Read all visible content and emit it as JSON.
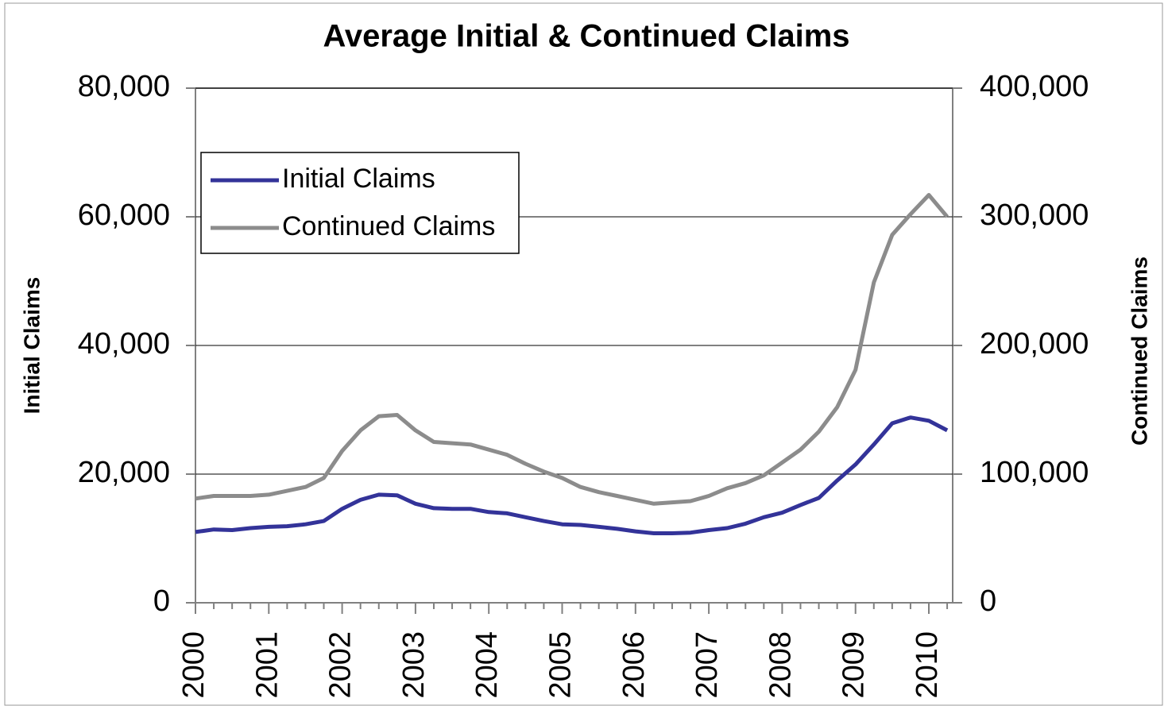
{
  "chart_data": {
    "type": "line",
    "title": "Average Initial & Continued Claims",
    "y_label": "Initial Claims",
    "y2_label": "Continued Claims",
    "categories": [
      "2000",
      null,
      null,
      null,
      "2001",
      null,
      null,
      null,
      "2002",
      null,
      null,
      null,
      "2003",
      null,
      null,
      null,
      "2004",
      null,
      null,
      null,
      "2005",
      null,
      null,
      null,
      "2006",
      null,
      null,
      null,
      "2007",
      null,
      null,
      null,
      "2008",
      null,
      null,
      null,
      "2009",
      null,
      null,
      null,
      "2010",
      null
    ],
    "series": [
      {
        "name": "Initial Claims",
        "color": "#333399",
        "axis": "y",
        "values": [
          11000,
          11400,
          11300,
          11600,
          11800,
          11900,
          12200,
          12700,
          14600,
          16000,
          16800,
          16700,
          15400,
          14700,
          14600,
          14600,
          14100,
          13900,
          13300,
          12700,
          12200,
          12100,
          11800,
          11500,
          11100,
          10800,
          10800,
          10900,
          11300,
          11600,
          12300,
          13300,
          14000,
          15200,
          16300,
          19000,
          21500,
          24600,
          27900,
          28800,
          28300,
          26800
        ]
      },
      {
        "name": "Continued Claims",
        "color": "#8c8c8c",
        "axis": "y2",
        "values": [
          81000,
          83000,
          83000,
          83000,
          84000,
          87000,
          90000,
          97000,
          118000,
          134000,
          145000,
          146000,
          134000,
          125000,
          124000,
          123000,
          119000,
          115000,
          108000,
          102000,
          97000,
          90000,
          86000,
          83000,
          80000,
          77000,
          78000,
          79000,
          83000,
          89000,
          93000,
          99000,
          109000,
          119000,
          133000,
          152000,
          181000,
          249000,
          286000,
          302000,
          317000,
          300000
        ]
      }
    ],
    "ylim": [
      0,
      80000
    ],
    "yticks": [
      0,
      {
        "value": 20000,
        "label": "20,000"
      },
      {
        "value": 40000,
        "label": "40,000"
      },
      {
        "value": 60000,
        "label": "60,000"
      },
      {
        "value": 80000,
        "label": "80,000"
      }
    ],
    "y2lim": [
      0,
      400000
    ],
    "y2ticks": [
      0,
      {
        "value": 100000,
        "label": "100,000"
      },
      {
        "value": 200000,
        "label": "200,000"
      },
      {
        "value": 300000,
        "label": "300,000"
      },
      {
        "value": 400000,
        "label": "400,000"
      }
    ],
    "grid": true,
    "legend": "upper left"
  }
}
